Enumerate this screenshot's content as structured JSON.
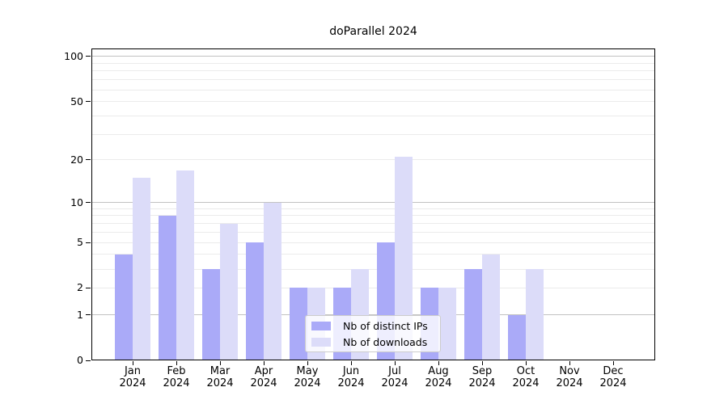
{
  "chart_data": {
    "type": "bar",
    "title": "doParallel 2024",
    "year": "2024",
    "categories": [
      "Jan",
      "Feb",
      "Mar",
      "Apr",
      "May",
      "Jun",
      "Jul",
      "Aug",
      "Sep",
      "Oct",
      "Nov",
      "Dec"
    ],
    "series": [
      {
        "name": "Nb of distinct IPs",
        "key": "distinct-ips",
        "color": "#aaaaf8",
        "values": [
          4,
          8,
          3,
          5,
          2,
          2,
          5,
          2,
          3,
          1,
          0,
          0
        ]
      },
      {
        "name": "Nb of downloads",
        "key": "downloads",
        "color": "#dcdcf9",
        "values": [
          15,
          17,
          7,
          10,
          2,
          3,
          21,
          2,
          4,
          3,
          0,
          0
        ]
      }
    ],
    "y_axis": {
      "scale": "log1p",
      "tick_values": [
        0,
        1,
        2,
        5,
        10,
        20,
        50,
        100
      ],
      "major_gridlines": [
        1,
        10,
        100
      ],
      "minor_gridlines": [
        2,
        3,
        4,
        5,
        6,
        7,
        8,
        9,
        20,
        30,
        40,
        50,
        60,
        70,
        80,
        90
      ],
      "range": [
        0,
        114
      ]
    },
    "legend": {
      "position": "lower-center-inside"
    },
    "colors": {
      "major_grid": "#c2c2c2",
      "minor_grid": "#ebebeb",
      "axis": "#000000",
      "background": "#ffffff"
    },
    "grid": "on"
  }
}
